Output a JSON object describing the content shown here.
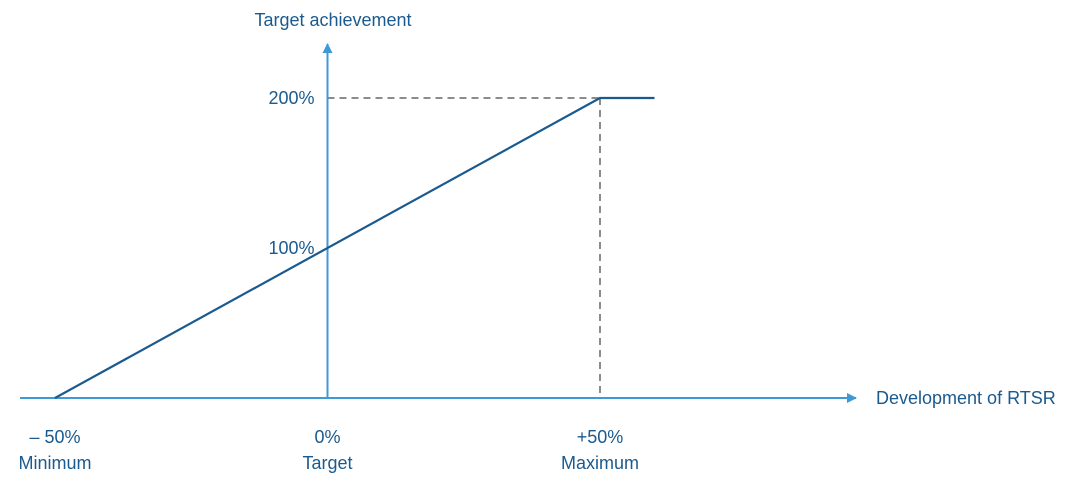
{
  "colors": {
    "axis": "#3d9ad6",
    "line": "#1a5a8f",
    "text": "#1a5a8f",
    "guide": "#8c8c8c"
  },
  "chart_data": {
    "type": "line",
    "xlabel": "Development of RTSR",
    "ylabel": "Target achievement",
    "xlim": [
      -50,
      50
    ],
    "ylim": [
      0,
      200
    ],
    "x_ticks": [
      {
        "value": -50,
        "label": "– 50%",
        "sublabel": "Minimum"
      },
      {
        "value": 0,
        "label": "0%",
        "sublabel": "Target"
      },
      {
        "value": 50,
        "label": "+50%",
        "sublabel": "Maximum"
      }
    ],
    "y_ticks": [
      {
        "value": 100,
        "label": "100%"
      },
      {
        "value": 200,
        "label": "200%"
      }
    ],
    "series": [
      {
        "x": [
          -50,
          50,
          60
        ],
        "y": [
          0,
          200,
          200
        ]
      }
    ],
    "reference_lines": [
      {
        "style": "dashed",
        "x": [
          0,
          50
        ],
        "y": [
          200,
          200
        ]
      },
      {
        "style": "dashed",
        "x": [
          50,
          50
        ],
        "y": [
          200,
          0
        ]
      }
    ]
  }
}
